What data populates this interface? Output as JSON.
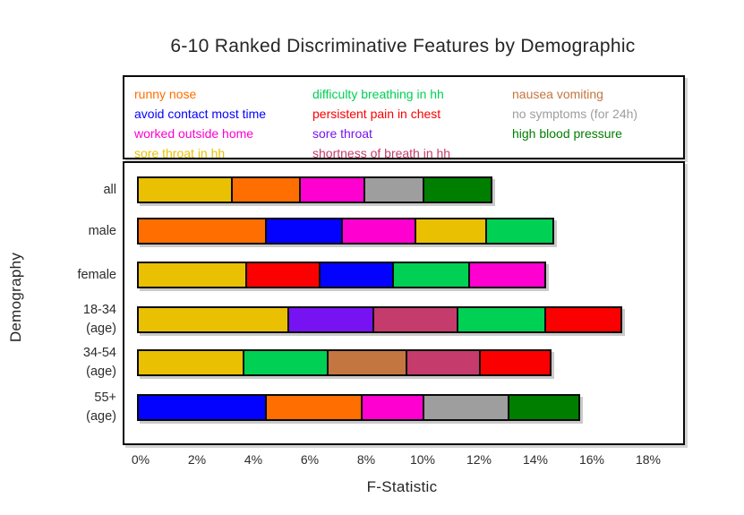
{
  "title": "6-10 Ranked Discriminative Features by Demographic",
  "axes": {
    "x_label": "F-Statistic",
    "y_label": "Demography",
    "x_ticks": [
      "0%",
      "2%",
      "4%",
      "6%",
      "8%",
      "10%",
      "12%",
      "14%",
      "16%",
      "18%"
    ]
  },
  "palette": {
    "orange": "#fe6e00",
    "blue": "#0202fe",
    "magenta": "#fe00cf",
    "gold": "#e9c002",
    "spring_green": "#00d053",
    "red": "#fb0000",
    "purple": "#7713f2",
    "dark_pink": "#c43b6c",
    "brown": "#c3763f",
    "gray": "#9e9e9e",
    "dark_green": "#007e00"
  },
  "legend": {
    "columns": [
      [
        {
          "label": "runny nose",
          "color": "orange"
        },
        {
          "label": "avoid contact most time",
          "color": "blue"
        },
        {
          "label": "worked outside home",
          "color": "magenta"
        },
        {
          "label": "sore throat in hh",
          "color": "gold"
        }
      ],
      [
        {
          "label": "difficulty breathing in hh",
          "color": "spring_green"
        },
        {
          "label": "persistent pain in chest",
          "color": "red"
        },
        {
          "label": "sore throat",
          "color": "purple"
        },
        {
          "label": "shortness of breath in hh",
          "color": "dark_pink"
        }
      ],
      [
        {
          "label": "nausea vomiting",
          "color": "brown"
        },
        {
          "label": "no symptoms (for 24h)",
          "color": "gray"
        },
        {
          "label": "high blood pressure",
          "color": "dark_green"
        }
      ]
    ]
  },
  "chart_data": {
    "type": "bar",
    "orientation": "horizontal_stacked",
    "title": "6-10 Ranked Discriminative Features by Demographic",
    "xlabel": "F-Statistic",
    "ylabel": "Demography",
    "xlim": [
      0,
      19.3
    ],
    "x_unit": "percent",
    "grid": false,
    "legend_position": "top-box",
    "categories": [
      "all",
      "male",
      "female",
      "18-34 (age)",
      "34-54 (age)",
      "55+ (age)"
    ],
    "rows": [
      {
        "category": "all",
        "label_lines": [
          "all"
        ],
        "segments": [
          {
            "feature": "sore throat in hh",
            "color": "gold",
            "value": 3.4
          },
          {
            "feature": "runny nose",
            "color": "orange",
            "value": 2.4
          },
          {
            "feature": "worked outside home",
            "color": "magenta",
            "value": 2.3
          },
          {
            "feature": "no symptoms (for 24h)",
            "color": "gray",
            "value": 2.1
          },
          {
            "feature": "high blood pressure",
            "color": "dark_green",
            "value": 2.4
          }
        ]
      },
      {
        "category": "male",
        "label_lines": [
          "male"
        ],
        "segments": [
          {
            "feature": "runny nose",
            "color": "orange",
            "value": 4.6
          },
          {
            "feature": "avoid contact most time",
            "color": "blue",
            "value": 2.7
          },
          {
            "feature": "worked outside home",
            "color": "magenta",
            "value": 2.6
          },
          {
            "feature": "sore throat in hh",
            "color": "gold",
            "value": 2.5
          },
          {
            "feature": "difficulty breathing in hh",
            "color": "spring_green",
            "value": 2.4
          }
        ]
      },
      {
        "category": "female",
        "label_lines": [
          "female"
        ],
        "segments": [
          {
            "feature": "sore throat in hh",
            "color": "gold",
            "value": 3.9
          },
          {
            "feature": "persistent pain in chest",
            "color": "red",
            "value": 2.6
          },
          {
            "feature": "avoid contact most time",
            "color": "blue",
            "value": 2.6
          },
          {
            "feature": "difficulty breathing in hh",
            "color": "spring_green",
            "value": 2.7
          },
          {
            "feature": "worked outside home",
            "color": "magenta",
            "value": 2.7
          }
        ]
      },
      {
        "category": "18-34 (age)",
        "label_lines": [
          "18-34",
          "(age)"
        ],
        "segments": [
          {
            "feature": "sore throat in hh",
            "color": "gold",
            "value": 5.4
          },
          {
            "feature": "sore throat",
            "color": "purple",
            "value": 3.0
          },
          {
            "feature": "shortness of breath in hh",
            "color": "dark_pink",
            "value": 3.0
          },
          {
            "feature": "difficulty breathing in hh",
            "color": "spring_green",
            "value": 3.1
          },
          {
            "feature": "persistent pain in chest",
            "color": "red",
            "value": 2.7
          }
        ]
      },
      {
        "category": "34-54 (age)",
        "label_lines": [
          "34-54",
          "(age)"
        ],
        "segments": [
          {
            "feature": "sore throat in hh",
            "color": "gold",
            "value": 3.8
          },
          {
            "feature": "difficulty breathing in hh",
            "color": "spring_green",
            "value": 3.0
          },
          {
            "feature": "nausea vomiting",
            "color": "brown",
            "value": 2.8
          },
          {
            "feature": "shortness of breath in hh",
            "color": "dark_pink",
            "value": 2.6
          },
          {
            "feature": "persistent pain in chest",
            "color": "red",
            "value": 2.5
          }
        ]
      },
      {
        "category": "55+ (age)",
        "label_lines": [
          "55+",
          "(age)"
        ],
        "segments": [
          {
            "feature": "avoid contact most time",
            "color": "blue",
            "value": 4.6
          },
          {
            "feature": "runny nose",
            "color": "orange",
            "value": 3.4
          },
          {
            "feature": "worked outside home",
            "color": "magenta",
            "value": 2.2
          },
          {
            "feature": "no symptoms (for 24h)",
            "color": "gray",
            "value": 3.0
          },
          {
            "feature": "high blood pressure",
            "color": "dark_green",
            "value": 2.5
          }
        ]
      }
    ]
  }
}
